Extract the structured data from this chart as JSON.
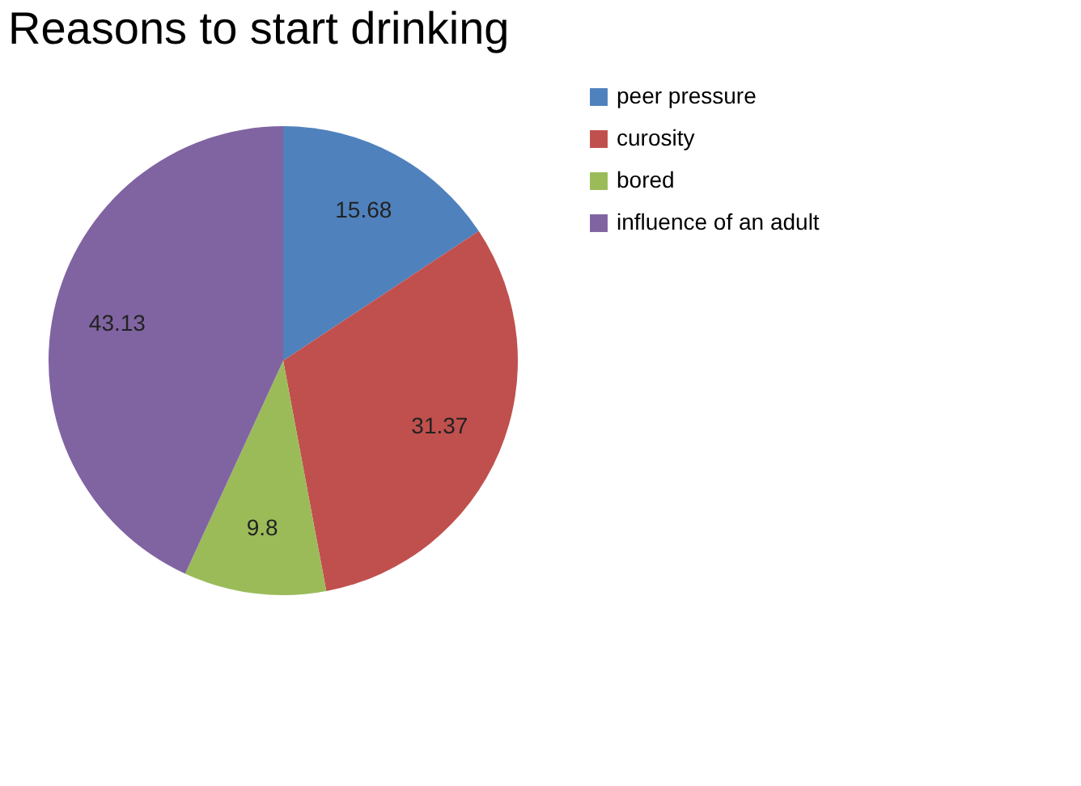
{
  "chart_data": {
    "type": "pie",
    "title": "Reasons to start drinking",
    "categories": [
      "peer pressure",
      "curosity",
      "bored",
      "influence of an adult"
    ],
    "values": [
      15.68,
      31.37,
      9.8,
      43.13
    ],
    "colors": [
      "#4f81bd",
      "#c0504d",
      "#9bbb59",
      "#8064a2"
    ],
    "data_labels": true,
    "legend": "right"
  }
}
